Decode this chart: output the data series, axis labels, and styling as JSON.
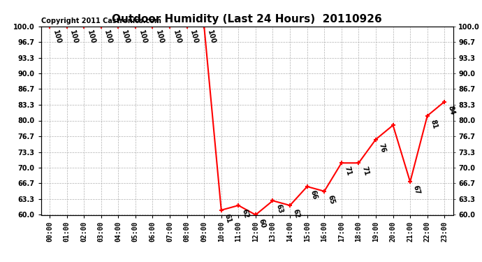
{
  "title": "Outdoor Humidity (Last 24 Hours)  20110926",
  "copyright_text": "Copyright 2011 Castronics.com",
  "x_labels": [
    "00:00",
    "01:00",
    "02:00",
    "03:00",
    "04:00",
    "05:00",
    "06:00",
    "07:00",
    "08:00",
    "09:00",
    "10:00",
    "11:00",
    "12:00",
    "13:00",
    "14:00",
    "15:00",
    "16:00",
    "17:00",
    "18:00",
    "19:00",
    "20:00",
    "21:00",
    "22:00",
    "23:00"
  ],
  "x_values": [
    0,
    1,
    2,
    3,
    4,
    5,
    6,
    7,
    8,
    9,
    10,
    11,
    12,
    13,
    14,
    15,
    16,
    17,
    18,
    19,
    20,
    21,
    22,
    23
  ],
  "y_values": [
    100,
    100,
    100,
    100,
    100,
    100,
    100,
    100,
    100,
    100,
    61,
    62,
    60,
    63,
    62,
    66,
    65,
    71,
    71,
    76,
    79,
    67,
    81,
    84
  ],
  "point_labels": [
    "100",
    "100",
    "100",
    "100",
    "100",
    "100",
    "100",
    "100",
    "100",
    "100",
    "61",
    "62",
    "60",
    "63",
    "62",
    "66",
    "65",
    "71",
    "71",
    "76",
    "",
    "67",
    "81",
    "84"
  ],
  "ylim_min": 60.0,
  "ylim_max": 100.0,
  "y_ticks": [
    60.0,
    63.3,
    66.7,
    70.0,
    73.3,
    76.7,
    80.0,
    83.3,
    86.7,
    90.0,
    93.3,
    96.7,
    100.0
  ],
  "y_tick_labels": [
    "60.0",
    "63.3",
    "66.7",
    "70.0",
    "73.3",
    "76.7",
    "80.0",
    "83.3",
    "86.7",
    "90.0",
    "93.3",
    "96.7",
    "100.0"
  ],
  "line_color": "red",
  "marker": "+",
  "background_color": "white",
  "grid_color": "#b0b0b0",
  "title_fontsize": 11,
  "tick_fontsize": 7,
  "annotation_fontsize": 7,
  "copyright_fontsize": 7,
  "line_width": 1.5,
  "marker_size": 5
}
